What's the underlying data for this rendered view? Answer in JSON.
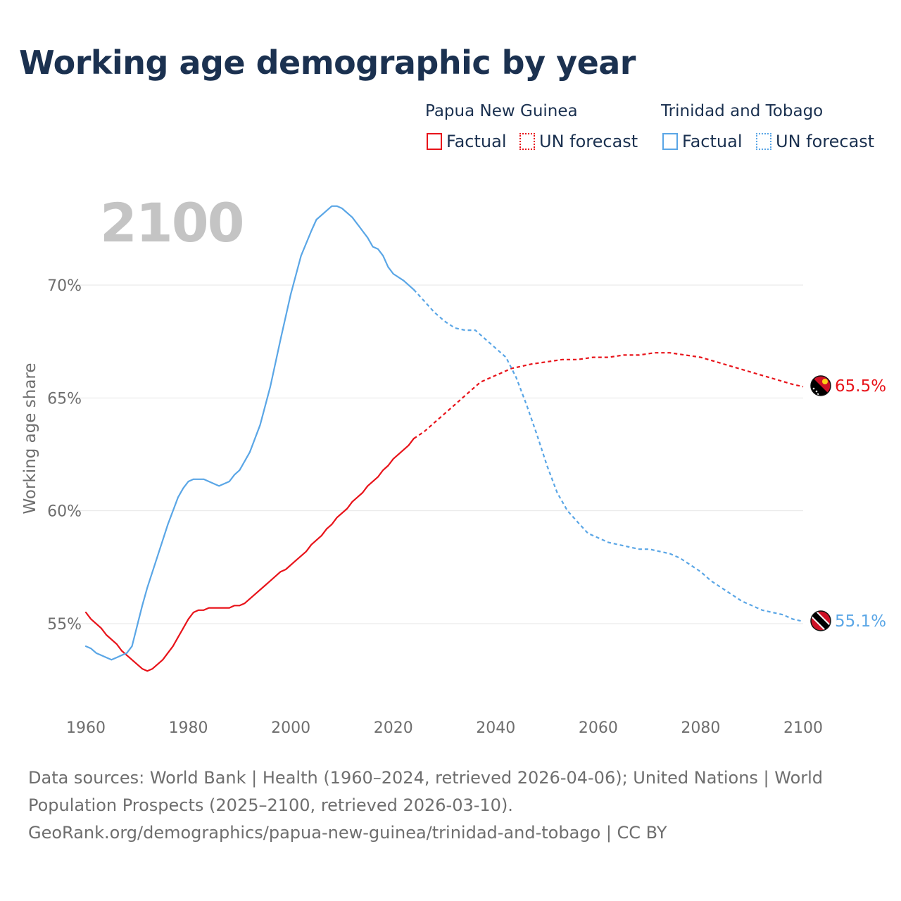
{
  "title": "Working age demographic by year",
  "legend": {
    "groups": [
      {
        "country": "Papua New Guinea",
        "factual_label": "Factual",
        "forecast_label": "UN forecast",
        "color": "#e8131a"
      },
      {
        "country": "Trinidad and Tobago",
        "factual_label": "Factual",
        "forecast_label": "UN forecast",
        "color": "#5aa6e6"
      }
    ]
  },
  "year_watermark": "2100",
  "footer": {
    "line1": "Data sources: World Bank | Health (1960–2024, retrieved 2026-04-06); United Nations | World",
    "line2": "Population Prospects (2025–2100, retrieved 2026-03-10).",
    "line3": "GeoRank.org/demographics/papua-new-guinea/trinidad-and-tobago | CC BY"
  },
  "chart_data": {
    "type": "line",
    "title": "Working age demographic by year",
    "xlabel": "",
    "ylabel": "Working age share",
    "xlim": [
      1960,
      2100
    ],
    "ylim": [
      51.5,
      74
    ],
    "x_ticks": [
      1960,
      1980,
      2000,
      2020,
      2040,
      2060,
      2080,
      2100
    ],
    "y_ticks": [
      {
        "value": 55,
        "label": "55%"
      },
      {
        "value": 60,
        "label": "60%"
      },
      {
        "value": 65,
        "label": "65%"
      },
      {
        "value": 70,
        "label": "70%"
      }
    ],
    "grid": true,
    "forecast_start": 2024,
    "series": [
      {
        "name": "Papua New Guinea",
        "color": "#e8131a",
        "end_label": "65.5%",
        "flag": "papua-new-guinea-flag",
        "points": [
          [
            1960,
            55.5
          ],
          [
            1961,
            55.2
          ],
          [
            1963,
            54.8
          ],
          [
            1964,
            54.5
          ],
          [
            1966,
            54.1
          ],
          [
            1967,
            53.8
          ],
          [
            1968,
            53.6
          ],
          [
            1970,
            53.2
          ],
          [
            1971,
            53.0
          ],
          [
            1972,
            52.9
          ],
          [
            1973,
            53.0
          ],
          [
            1975,
            53.4
          ],
          [
            1977,
            54.0
          ],
          [
            1978,
            54.4
          ],
          [
            1979,
            54.8
          ],
          [
            1980,
            55.2
          ],
          [
            1981,
            55.5
          ],
          [
            1982,
            55.6
          ],
          [
            1983,
            55.6
          ],
          [
            1984,
            55.7
          ],
          [
            1986,
            55.7
          ],
          [
            1988,
            55.7
          ],
          [
            1989,
            55.8
          ],
          [
            1990,
            55.8
          ],
          [
            1991,
            55.9
          ],
          [
            1993,
            56.3
          ],
          [
            1995,
            56.7
          ],
          [
            1997,
            57.1
          ],
          [
            1998,
            57.3
          ],
          [
            1999,
            57.4
          ],
          [
            2001,
            57.8
          ],
          [
            2003,
            58.2
          ],
          [
            2004,
            58.5
          ],
          [
            2006,
            58.9
          ],
          [
            2007,
            59.2
          ],
          [
            2008,
            59.4
          ],
          [
            2009,
            59.7
          ],
          [
            2011,
            60.1
          ],
          [
            2012,
            60.4
          ],
          [
            2014,
            60.8
          ],
          [
            2015,
            61.1
          ],
          [
            2017,
            61.5
          ],
          [
            2018,
            61.8
          ],
          [
            2019,
            62.0
          ],
          [
            2020,
            62.3
          ],
          [
            2022,
            62.7
          ],
          [
            2023,
            62.9
          ],
          [
            2024,
            63.2
          ],
          [
            2026,
            63.5
          ],
          [
            2028,
            63.9
          ],
          [
            2030,
            64.3
          ],
          [
            2032,
            64.7
          ],
          [
            2034,
            65.1
          ],
          [
            2035,
            65.3
          ],
          [
            2037,
            65.7
          ],
          [
            2039,
            65.9
          ],
          [
            2041,
            66.1
          ],
          [
            2043,
            66.3
          ],
          [
            2045,
            66.4
          ],
          [
            2047,
            66.5
          ],
          [
            2050,
            66.6
          ],
          [
            2053,
            66.7
          ],
          [
            2056,
            66.7
          ],
          [
            2059,
            66.8
          ],
          [
            2062,
            66.8
          ],
          [
            2065,
            66.9
          ],
          [
            2068,
            66.9
          ],
          [
            2071,
            67.0
          ],
          [
            2074,
            67.0
          ],
          [
            2077,
            66.9
          ],
          [
            2080,
            66.8
          ],
          [
            2083,
            66.6
          ],
          [
            2086,
            66.4
          ],
          [
            2089,
            66.2
          ],
          [
            2092,
            66.0
          ],
          [
            2095,
            65.8
          ],
          [
            2098,
            65.6
          ],
          [
            2100,
            65.5
          ]
        ]
      },
      {
        "name": "Trinidad and Tobago",
        "color": "#5aa6e6",
        "end_label": "55.1%",
        "flag": "trinidad-and-tobago-flag",
        "points": [
          [
            1960,
            54.0
          ],
          [
            1961,
            53.9
          ],
          [
            1962,
            53.7
          ],
          [
            1963,
            53.6
          ],
          [
            1964,
            53.5
          ],
          [
            1965,
            53.4
          ],
          [
            1966,
            53.5
          ],
          [
            1967,
            53.6
          ],
          [
            1968,
            53.7
          ],
          [
            1969,
            54.0
          ],
          [
            1970,
            54.9
          ],
          [
            1971,
            55.8
          ],
          [
            1972,
            56.6
          ],
          [
            1974,
            58.0
          ],
          [
            1976,
            59.4
          ],
          [
            1978,
            60.6
          ],
          [
            1979,
            61.0
          ],
          [
            1980,
            61.3
          ],
          [
            1981,
            61.4
          ],
          [
            1983,
            61.4
          ],
          [
            1985,
            61.2
          ],
          [
            1986,
            61.1
          ],
          [
            1988,
            61.3
          ],
          [
            1989,
            61.6
          ],
          [
            1990,
            61.8
          ],
          [
            1992,
            62.6
          ],
          [
            1994,
            63.8
          ],
          [
            1996,
            65.5
          ],
          [
            1998,
            67.6
          ],
          [
            2000,
            69.6
          ],
          [
            2002,
            71.3
          ],
          [
            2004,
            72.4
          ],
          [
            2005,
            72.9
          ],
          [
            2007,
            73.3
          ],
          [
            2008,
            73.5
          ],
          [
            2009,
            73.5
          ],
          [
            2010,
            73.4
          ],
          [
            2012,
            73.0
          ],
          [
            2014,
            72.4
          ],
          [
            2015,
            72.1
          ],
          [
            2016,
            71.7
          ],
          [
            2017,
            71.6
          ],
          [
            2018,
            71.3
          ],
          [
            2019,
            70.8
          ],
          [
            2020,
            70.5
          ],
          [
            2022,
            70.2
          ],
          [
            2024,
            69.8
          ],
          [
            2026,
            69.3
          ],
          [
            2028,
            68.8
          ],
          [
            2030,
            68.4
          ],
          [
            2032,
            68.1
          ],
          [
            2034,
            68.0
          ],
          [
            2036,
            68.0
          ],
          [
            2038,
            67.6
          ],
          [
            2040,
            67.2
          ],
          [
            2042,
            66.8
          ],
          [
            2044,
            65.9
          ],
          [
            2046,
            64.7
          ],
          [
            2048,
            63.4
          ],
          [
            2050,
            62.0
          ],
          [
            2052,
            60.8
          ],
          [
            2054,
            60.0
          ],
          [
            2056,
            59.5
          ],
          [
            2058,
            59.0
          ],
          [
            2060,
            58.8
          ],
          [
            2062,
            58.6
          ],
          [
            2064,
            58.5
          ],
          [
            2066,
            58.4
          ],
          [
            2068,
            58.3
          ],
          [
            2070,
            58.3
          ],
          [
            2072,
            58.2
          ],
          [
            2074,
            58.1
          ],
          [
            2076,
            57.9
          ],
          [
            2078,
            57.6
          ],
          [
            2080,
            57.3
          ],
          [
            2082,
            56.9
          ],
          [
            2084,
            56.6
          ],
          [
            2086,
            56.3
          ],
          [
            2088,
            56.0
          ],
          [
            2090,
            55.8
          ],
          [
            2092,
            55.6
          ],
          [
            2094,
            55.5
          ],
          [
            2096,
            55.4
          ],
          [
            2098,
            55.2
          ],
          [
            2100,
            55.1
          ]
        ]
      }
    ]
  }
}
